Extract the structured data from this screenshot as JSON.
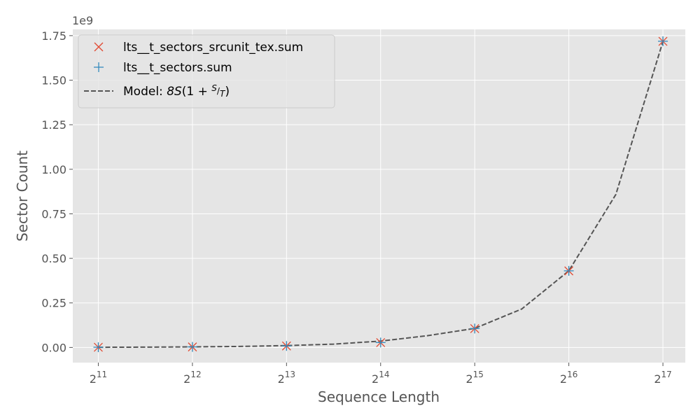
{
  "chart_data": {
    "type": "scatter",
    "xlabel": "Sequence Length",
    "ylabel": "Sector Count",
    "y_offset_label": "1e9",
    "x_scale": "log2",
    "xlim": [
      1697,
      154543
    ],
    "ylim": [
      -0.085,
      1.785
    ],
    "y_multiplier": 1000000000,
    "x_ticks": [
      2048,
      4096,
      8192,
      16384,
      32768,
      65536,
      131072
    ],
    "x_tick_labels": [
      {
        "base": "2",
        "exp": "11"
      },
      {
        "base": "2",
        "exp": "12"
      },
      {
        "base": "2",
        "exp": "13"
      },
      {
        "base": "2",
        "exp": "14"
      },
      {
        "base": "2",
        "exp": "15"
      },
      {
        "base": "2",
        "exp": "16"
      },
      {
        "base": "2",
        "exp": "17"
      }
    ],
    "y_ticks": [
      0.0,
      0.25,
      0.5,
      0.75,
      1.0,
      1.25,
      1.5,
      1.75
    ],
    "y_tick_labels": [
      "0.00",
      "0.25",
      "0.50",
      "0.75",
      "1.00",
      "1.25",
      "1.50",
      "1.75"
    ],
    "grid": true,
    "legend_position": "top-left",
    "background": "#e5e5e5",
    "series": [
      {
        "name": "lts__t_sectors_srcunit_tex.sum",
        "marker": "x",
        "color": "#e24a33",
        "x": [
          2048,
          4096,
          8192,
          16384,
          32768,
          65536,
          131072
        ],
        "y": [
          0.0012,
          0.0029,
          0.0083,
          0.0272,
          0.1058,
          0.4296,
          1.718
        ]
      },
      {
        "name": "lts__t_sectors.sum",
        "marker": "+",
        "color": "#348abd",
        "x": [
          2048,
          4096,
          8192,
          16384,
          32768,
          65536,
          131072
        ],
        "y": [
          0.0013,
          0.003,
          0.0085,
          0.0275,
          0.1062,
          0.43,
          1.7185
        ]
      },
      {
        "name": "Model: 8S(1 + S/T)",
        "name_prefix": "Model: ",
        "name_math": "8S(1 + S/T)",
        "style": "dashed",
        "color": "#555555",
        "x": [
          2048,
          2896,
          4096,
          5793,
          8192,
          11585,
          16384,
          23170,
          32768,
          46341,
          65536,
          92682,
          131072
        ],
        "y": [
          0.0011,
          0.0019,
          0.0033,
          0.0058,
          0.0103,
          0.0189,
          0.0355,
          0.0663,
          0.107,
          0.216,
          0.43,
          0.8588,
          1.718
        ]
      }
    ]
  }
}
